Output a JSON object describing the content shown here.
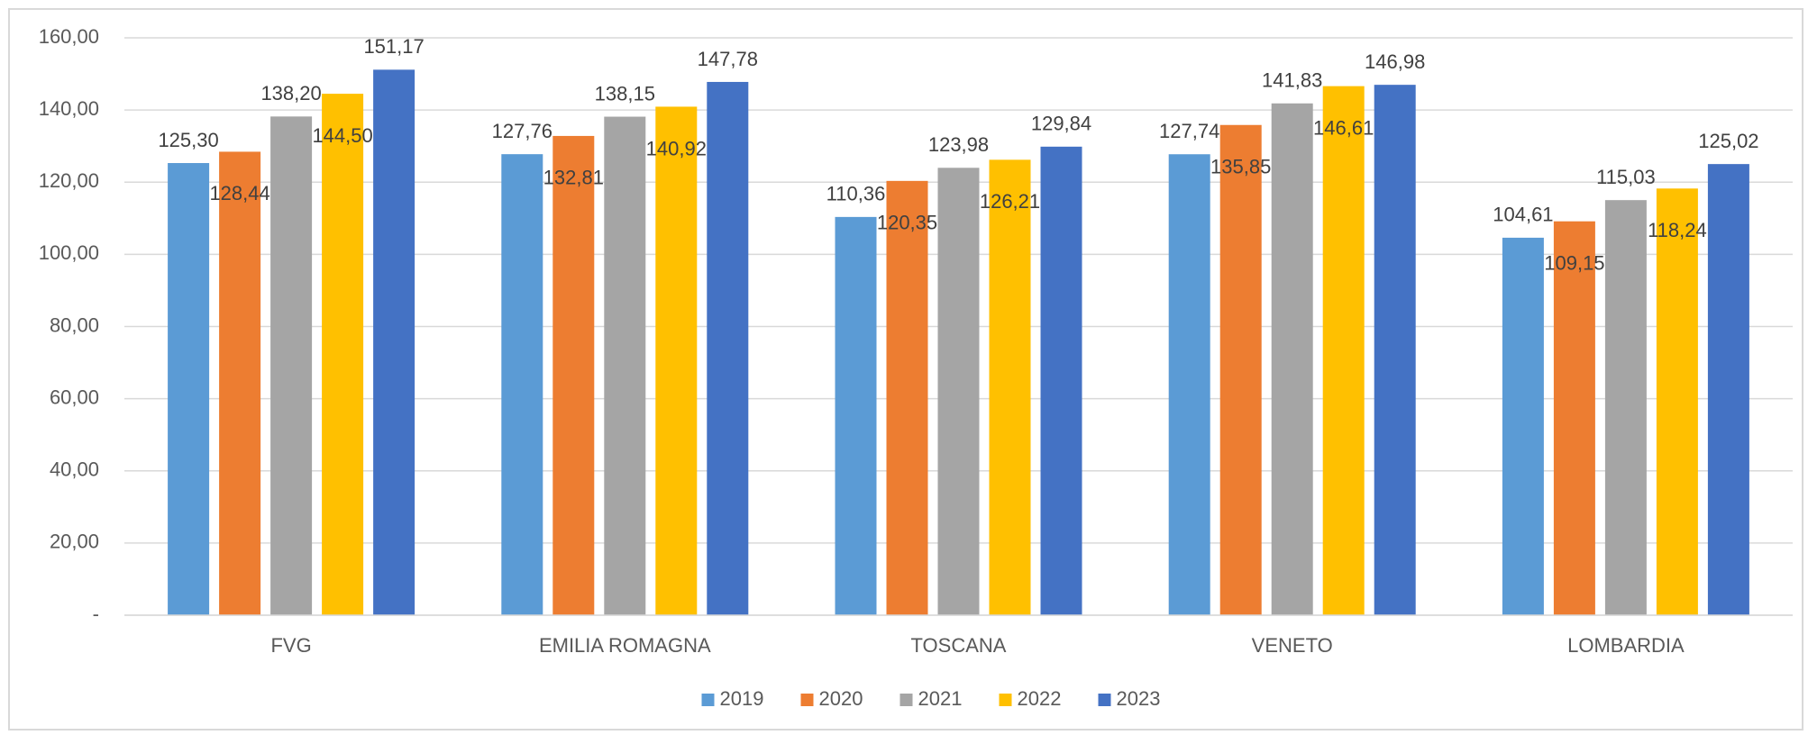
{
  "chart_data": {
    "type": "bar",
    "categories": [
      "FVG",
      "EMILIA ROMAGNA",
      "TOSCANA",
      "VENETO",
      "LOMBARDIA"
    ],
    "series": [
      {
        "name": "2019",
        "color": "#5b9bd5",
        "values": [
          125.3,
          127.76,
          110.36,
          127.74,
          104.61
        ],
        "value_labels": [
          "125,30",
          "127,76",
          "110,36",
          "127,74",
          "104,61"
        ]
      },
      {
        "name": "2020",
        "color": "#ed7d31",
        "values": [
          128.44,
          132.81,
          120.35,
          135.85,
          109.15
        ],
        "value_labels": [
          "128,44",
          "132,81",
          "120,35",
          "135,85",
          "109,15"
        ]
      },
      {
        "name": "2021",
        "color": "#a5a5a5",
        "values": [
          138.2,
          138.15,
          123.98,
          141.83,
          115.03
        ],
        "value_labels": [
          "138,20",
          "138,15",
          "123,98",
          "141,83",
          "115,03"
        ]
      },
      {
        "name": "2022",
        "color": "#ffc000",
        "values": [
          144.5,
          140.92,
          126.21,
          146.61,
          118.24
        ],
        "value_labels": [
          "144,50",
          "140,92",
          "126,21",
          "146,61",
          "118,24"
        ]
      },
      {
        "name": "2023",
        "color": "#4472c4",
        "values": [
          151.17,
          147.78,
          129.84,
          146.98,
          125.02
        ],
        "value_labels": [
          "151,17",
          "147,78",
          "129,84",
          "146,98",
          "125,02"
        ]
      }
    ],
    "ylim": [
      0,
      160
    ],
    "yticks": [
      {
        "value": 0,
        "label": "-"
      },
      {
        "value": 20,
        "label": "20,00"
      },
      {
        "value": 40,
        "label": "40,00"
      },
      {
        "value": 60,
        "label": "60,00"
      },
      {
        "value": 80,
        "label": "80,00"
      },
      {
        "value": 100,
        "label": "100,00"
      },
      {
        "value": 120,
        "label": "120,00"
      },
      {
        "value": 140,
        "label": "140,00"
      },
      {
        "value": 160,
        "label": "160,00"
      }
    ],
    "grid": true,
    "legend": "bottom"
  }
}
